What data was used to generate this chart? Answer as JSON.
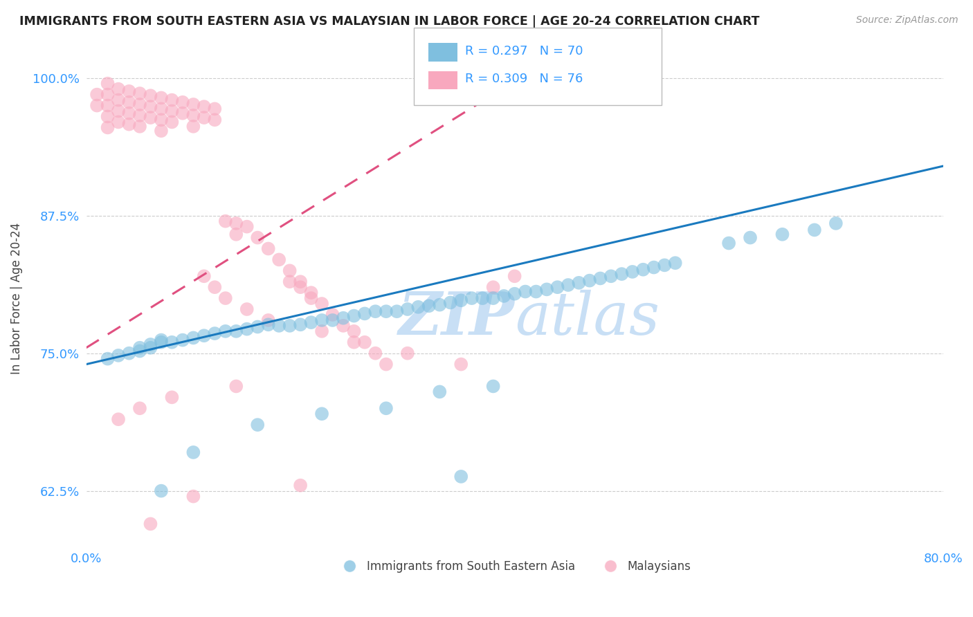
{
  "title": "IMMIGRANTS FROM SOUTH EASTERN ASIA VS MALAYSIAN IN LABOR FORCE | AGE 20-24 CORRELATION CHART",
  "source": "Source: ZipAtlas.com",
  "ylabel": "In Labor Force | Age 20-24",
  "legend_blue_label": "Immigrants from South Eastern Asia",
  "legend_pink_label": "Malaysians",
  "R_blue": 0.297,
  "N_blue": 70,
  "R_pink": 0.309,
  "N_pink": 76,
  "blue_color": "#7fbfdf",
  "pink_color": "#f8a8be",
  "trend_blue_color": "#1a7abf",
  "trend_pink_color": "#e05080",
  "watermark_color": "#c8dff5",
  "xlim": [
    0.0,
    0.8
  ],
  "ylim": [
    0.575,
    1.025
  ],
  "yticks": [
    0.625,
    0.75,
    0.875,
    1.0
  ],
  "yticklabels": [
    "62.5%",
    "75.0%",
    "87.5%",
    "100.0%"
  ],
  "xticks": [
    0.0,
    0.2,
    0.4,
    0.6,
    0.8
  ],
  "xticklabels": [
    "0.0%",
    "",
    "",
    "",
    "80.0%"
  ],
  "blue_x": [
    0.02,
    0.03,
    0.04,
    0.05,
    0.05,
    0.06,
    0.06,
    0.07,
    0.07,
    0.08,
    0.09,
    0.1,
    0.11,
    0.12,
    0.13,
    0.14,
    0.15,
    0.16,
    0.17,
    0.18,
    0.19,
    0.2,
    0.21,
    0.22,
    0.23,
    0.24,
    0.25,
    0.26,
    0.27,
    0.28,
    0.29,
    0.3,
    0.31,
    0.32,
    0.33,
    0.34,
    0.35,
    0.36,
    0.37,
    0.38,
    0.39,
    0.4,
    0.41,
    0.42,
    0.43,
    0.44,
    0.45,
    0.46,
    0.47,
    0.48,
    0.49,
    0.5,
    0.51,
    0.52,
    0.53,
    0.54,
    0.55,
    0.38,
    0.6,
    0.62,
    0.65,
    0.68,
    0.7,
    0.33,
    0.28,
    0.22,
    0.16,
    0.1,
    0.07,
    0.35
  ],
  "blue_y": [
    0.745,
    0.748,
    0.75,
    0.752,
    0.755,
    0.755,
    0.758,
    0.76,
    0.762,
    0.76,
    0.762,
    0.764,
    0.766,
    0.768,
    0.77,
    0.77,
    0.772,
    0.774,
    0.776,
    0.775,
    0.775,
    0.776,
    0.778,
    0.78,
    0.78,
    0.782,
    0.784,
    0.786,
    0.788,
    0.788,
    0.788,
    0.79,
    0.792,
    0.793,
    0.794,
    0.796,
    0.798,
    0.8,
    0.8,
    0.8,
    0.802,
    0.804,
    0.806,
    0.806,
    0.808,
    0.81,
    0.812,
    0.814,
    0.816,
    0.818,
    0.82,
    0.822,
    0.824,
    0.826,
    0.828,
    0.83,
    0.832,
    0.72,
    0.85,
    0.855,
    0.858,
    0.862,
    0.868,
    0.715,
    0.7,
    0.695,
    0.685,
    0.66,
    0.625,
    0.638
  ],
  "pink_x": [
    0.01,
    0.01,
    0.02,
    0.02,
    0.02,
    0.02,
    0.02,
    0.03,
    0.03,
    0.03,
    0.03,
    0.04,
    0.04,
    0.04,
    0.04,
    0.05,
    0.05,
    0.05,
    0.05,
    0.06,
    0.06,
    0.06,
    0.07,
    0.07,
    0.07,
    0.07,
    0.08,
    0.08,
    0.08,
    0.09,
    0.09,
    0.1,
    0.1,
    0.1,
    0.11,
    0.11,
    0.12,
    0.12,
    0.13,
    0.14,
    0.14,
    0.15,
    0.16,
    0.17,
    0.18,
    0.19,
    0.2,
    0.21,
    0.22,
    0.23,
    0.24,
    0.25,
    0.26,
    0.27,
    0.28,
    0.19,
    0.2,
    0.21,
    0.11,
    0.12,
    0.13,
    0.15,
    0.17,
    0.22,
    0.25,
    0.3,
    0.35,
    0.38,
    0.4,
    0.14,
    0.08,
    0.05,
    0.03,
    0.2,
    0.1,
    0.06
  ],
  "pink_y": [
    0.985,
    0.975,
    0.995,
    0.985,
    0.975,
    0.965,
    0.955,
    0.99,
    0.98,
    0.97,
    0.96,
    0.988,
    0.978,
    0.968,
    0.958,
    0.986,
    0.976,
    0.966,
    0.956,
    0.984,
    0.974,
    0.964,
    0.982,
    0.972,
    0.962,
    0.952,
    0.98,
    0.97,
    0.96,
    0.978,
    0.968,
    0.976,
    0.966,
    0.956,
    0.974,
    0.964,
    0.972,
    0.962,
    0.87,
    0.868,
    0.858,
    0.865,
    0.855,
    0.845,
    0.835,
    0.825,
    0.815,
    0.805,
    0.795,
    0.785,
    0.775,
    0.77,
    0.76,
    0.75,
    0.74,
    0.815,
    0.81,
    0.8,
    0.82,
    0.81,
    0.8,
    0.79,
    0.78,
    0.77,
    0.76,
    0.75,
    0.74,
    0.81,
    0.82,
    0.72,
    0.71,
    0.7,
    0.69,
    0.63,
    0.62,
    0.595
  ]
}
